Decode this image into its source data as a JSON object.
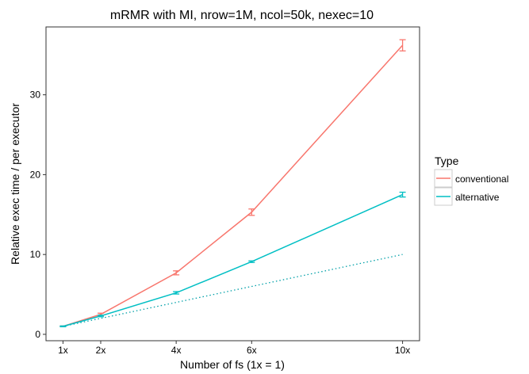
{
  "chart_data": {
    "type": "line",
    "title": "mRMR with MI, nrow=1M, ncol=50k, nexec=10",
    "xlabel": "Number of fs (1x = 1)",
    "ylabel": "Relative exec time / per executor",
    "x": [
      1,
      2,
      4,
      6,
      10
    ],
    "x_tick_labels": [
      "1x",
      "2x",
      "4x",
      "6x",
      "10x"
    ],
    "xlim": [
      0.55,
      10.45
    ],
    "ylim": [
      -0.8,
      38.5
    ],
    "y_ticks": [
      0,
      10,
      20,
      30
    ],
    "grid": false,
    "legend": {
      "title": "Type",
      "placement": "right"
    },
    "series": [
      {
        "name": "conventional",
        "color": "#f8766d",
        "values": [
          1.0,
          2.5,
          7.7,
          15.3,
          36.2
        ],
        "error": [
          0.05,
          0.15,
          0.25,
          0.4,
          0.7
        ]
      },
      {
        "name": "alternative",
        "color": "#00bfc4",
        "values": [
          1.0,
          2.3,
          5.2,
          9.1,
          17.5
        ],
        "error": [
          0.05,
          0.1,
          0.15,
          0.1,
          0.3
        ]
      }
    ],
    "reference_line": {
      "style": "dotted",
      "color": "#00a0a8",
      "values": [
        1,
        2,
        4,
        6,
        10
      ]
    }
  }
}
